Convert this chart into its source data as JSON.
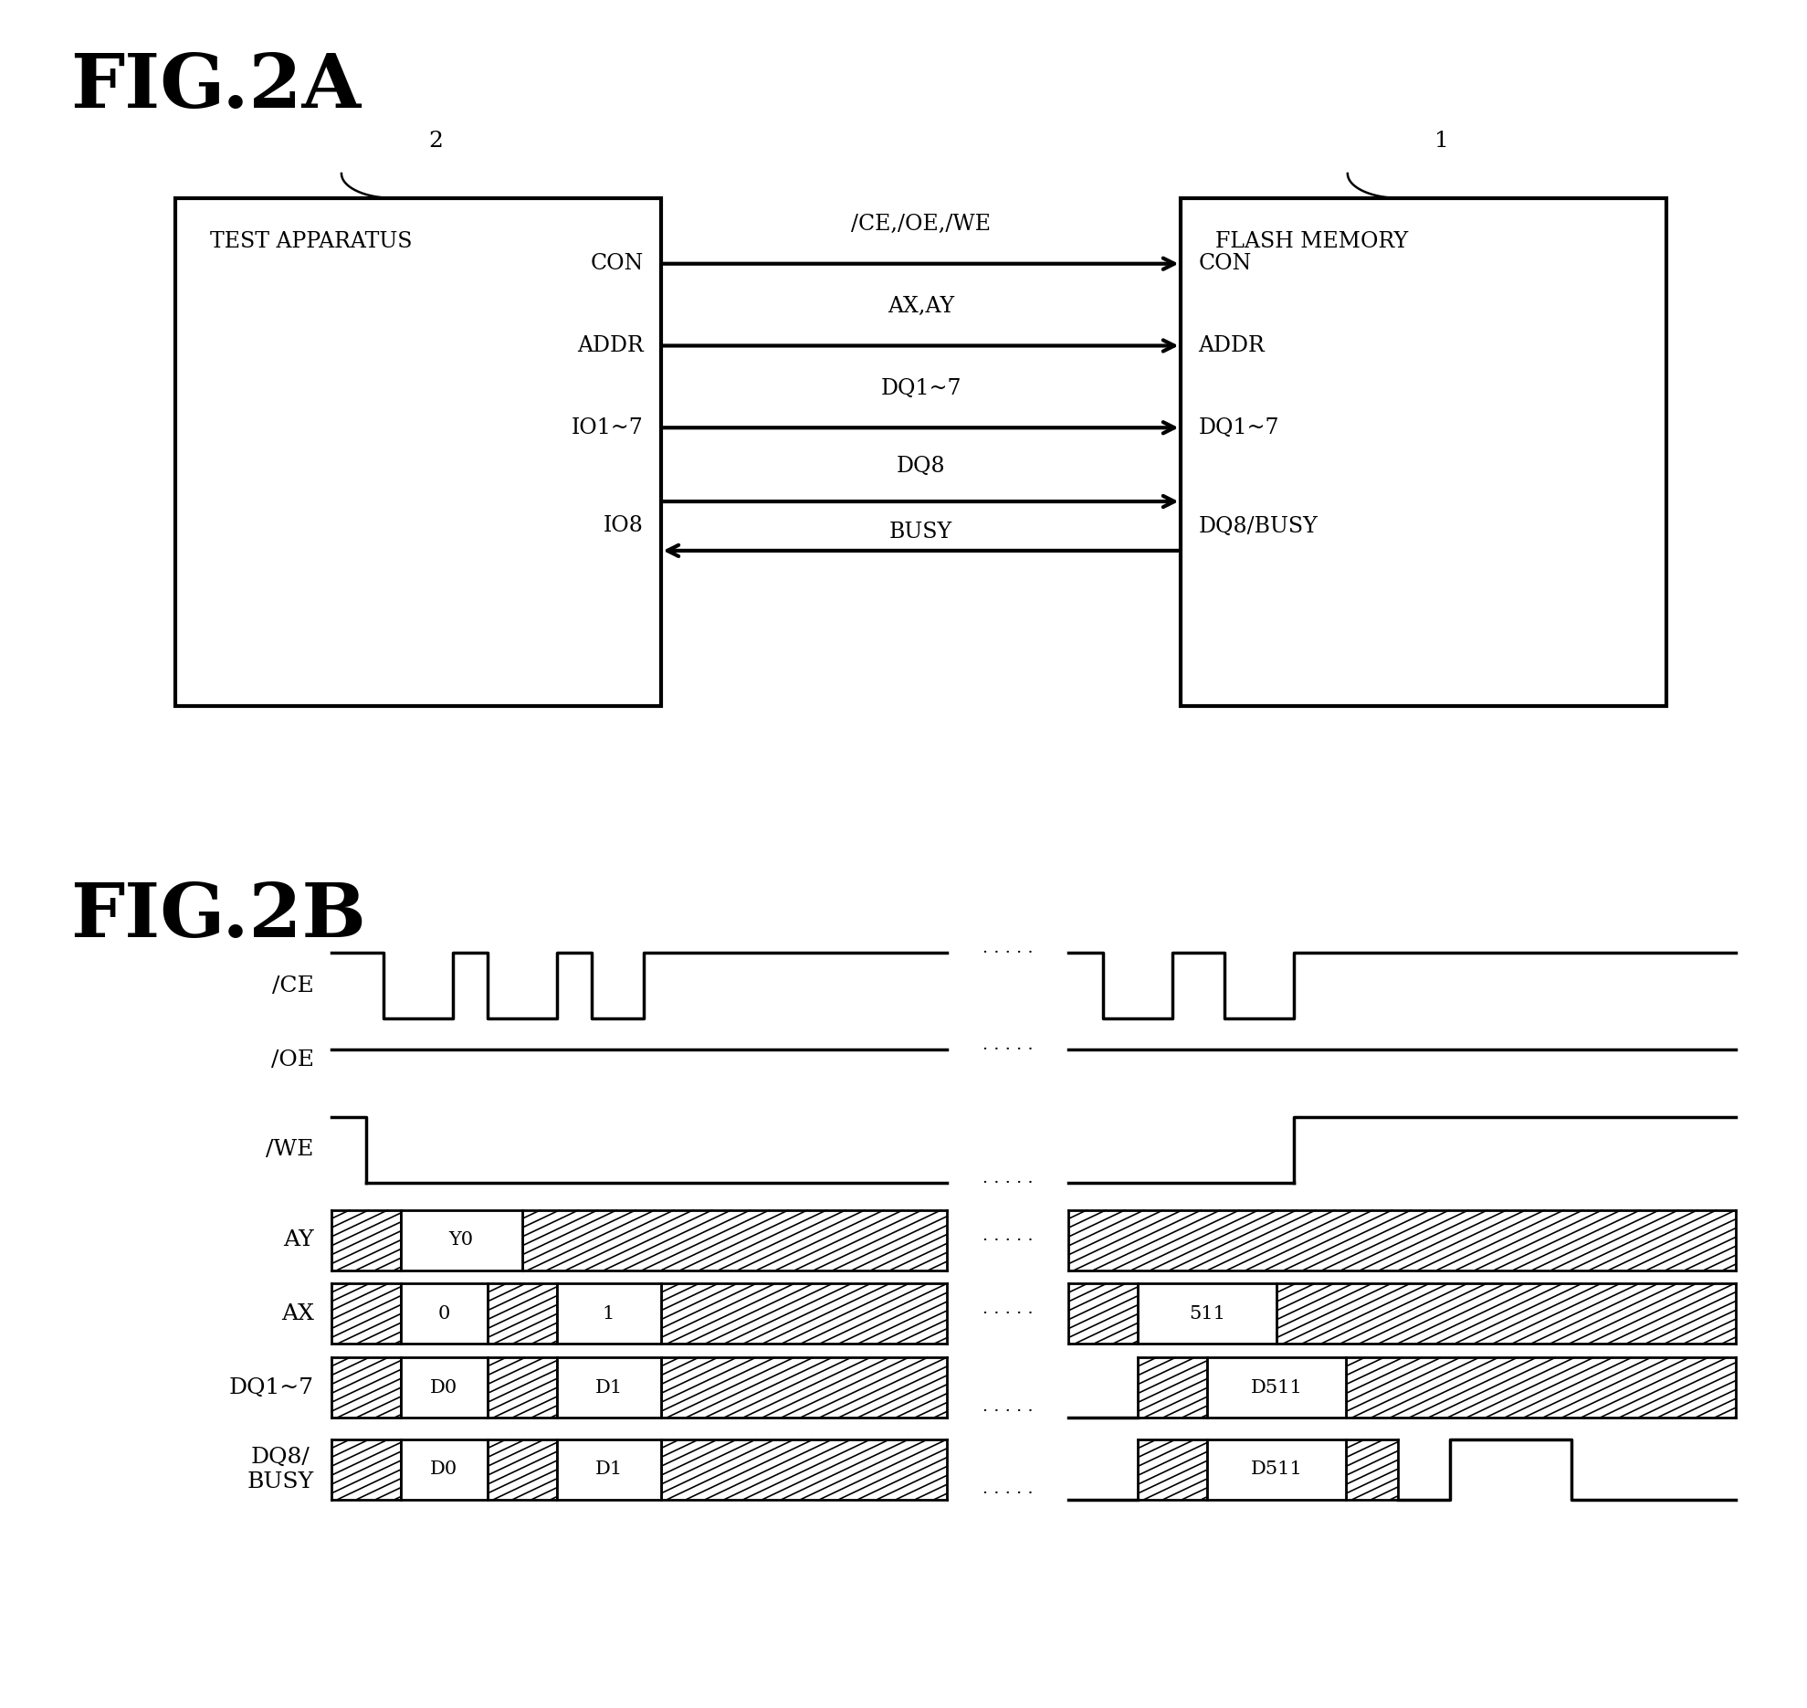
{
  "fig_title_a": "FIG.2A",
  "fig_title_b": "FIG.2B",
  "box_left_label": "TEST APPARATUS",
  "box_right_label": "FLASH MEMORY",
  "box_left_num": "2",
  "box_right_num": "1",
  "signals_left": [
    "CON",
    "ADDR",
    "IO1~7",
    "IO8"
  ],
  "signals_right": [
    "CON",
    "ADDR",
    "DQ1~7",
    "DQ8/BUSY"
  ],
  "arrow_label_con": "/CE,/OE,/WE",
  "arrow_label_addr": "AX,AY",
  "arrow_label_dq17": "DQ1~7",
  "arrow_label_dq8": "DQ8",
  "arrow_label_busy": "BUSY",
  "timing_signals": [
    "/CE",
    "/OE",
    "/WE",
    "AY",
    "AX",
    "DQ1~7",
    "DQ8/\nBUSY"
  ],
  "background_color": "#ffffff",
  "line_color": "#000000"
}
